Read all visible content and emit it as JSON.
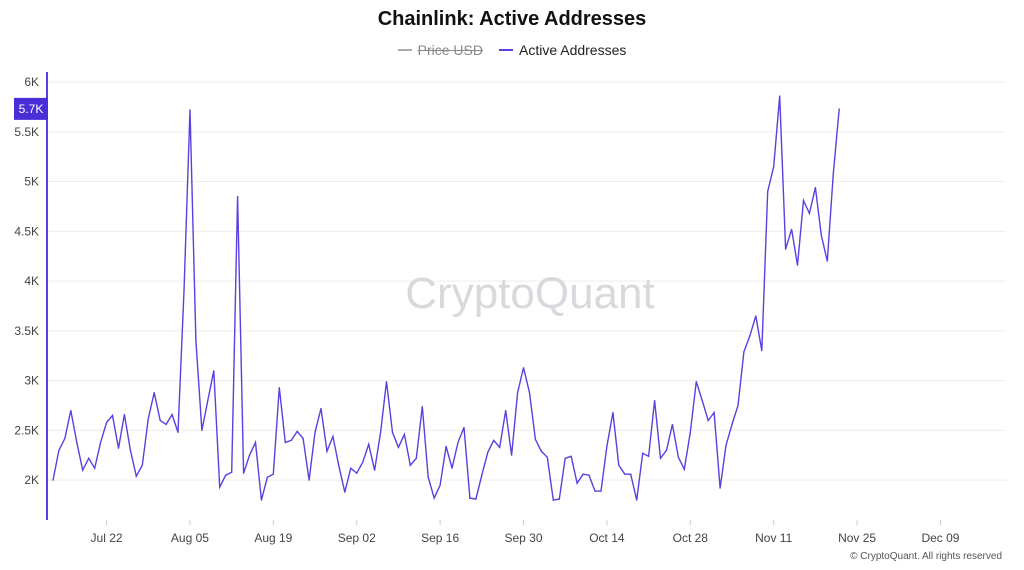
{
  "title": "Chainlink: Active Addresses",
  "legend": [
    {
      "label": "Price USD",
      "color": "#999999",
      "hidden": true
    },
    {
      "label": "Active Addresses",
      "color": "#5b3fe0",
      "hidden": false
    }
  ],
  "watermark": "CryptoQuant",
  "copyright": "© CryptoQuant. All rights reserved",
  "current_value_label": "5.7K",
  "colors": {
    "line": "#5b3fe0",
    "axis": "#5b3fe0",
    "grid": "#eeeeee",
    "badge": "#4a2fd8"
  },
  "chart_data": {
    "type": "line",
    "title": "Chainlink: Active Addresses",
    "xlabel": "",
    "ylabel": "",
    "x_range": [
      "2024-07-12",
      "2024-12-20"
    ],
    "ylim": [
      1600,
      6000
    ],
    "y_ticks": [
      2000,
      2500,
      3000,
      3500,
      4000,
      4500,
      5000,
      5500,
      6000
    ],
    "y_tick_labels": [
      "2K",
      "2.5K",
      "3K",
      "3.5K",
      "4K",
      "4.5K",
      "5K",
      "5.5K",
      "6K"
    ],
    "x_ticks": [
      "2024-07-22",
      "2024-08-05",
      "2024-08-19",
      "2024-09-02",
      "2024-09-16",
      "2024-09-30",
      "2024-10-14",
      "2024-10-28",
      "2024-11-11",
      "2024-11-25",
      "2024-12-09"
    ],
    "x_tick_labels": [
      "Jul 22",
      "Aug 05",
      "Aug 19",
      "Sep 02",
      "Sep 16",
      "Sep 30",
      "Oct 14",
      "Oct 28",
      "Nov 11",
      "Nov 25",
      "Dec 09"
    ],
    "grid": true,
    "legend_position": "top-center",
    "series": [
      {
        "name": "Active Addresses",
        "start_date": "2024-07-13",
        "values": [
          2000,
          2300,
          2420,
          2700,
          2380,
          2100,
          2220,
          2120,
          2380,
          2580,
          2650,
          2320,
          2660,
          2300,
          2040,
          2150,
          2620,
          2880,
          2600,
          2560,
          2660,
          2480,
          3900,
          5720,
          3400,
          2500,
          2800,
          3100,
          1930,
          2050,
          2080,
          4850,
          2070,
          2250,
          2380,
          1800,
          2030,
          2060,
          2930,
          2380,
          2400,
          2490,
          2420,
          2000,
          2480,
          2720,
          2290,
          2440,
          2140,
          1880,
          2120,
          2070,
          2180,
          2360,
          2100,
          2480,
          2990,
          2480,
          2330,
          2460,
          2150,
          2220,
          2740,
          2030,
          1820,
          1950,
          2340,
          2120,
          2380,
          2530,
          1820,
          1810,
          2050,
          2280,
          2400,
          2330,
          2700,
          2250,
          2880,
          3130,
          2880,
          2410,
          2290,
          2230,
          1800,
          1810,
          2220,
          2240,
          1970,
          2060,
          2050,
          1890,
          1890,
          2340,
          2680,
          2150,
          2060,
          2060,
          1800,
          2270,
          2240,
          2800,
          2220,
          2300,
          2560,
          2230,
          2110,
          2480,
          2990,
          2800,
          2600,
          2680,
          1920,
          2350,
          2560,
          2750,
          3290,
          3450,
          3650,
          3300,
          4900,
          5150,
          5860,
          4320,
          4520,
          4160,
          4810,
          4680,
          4940,
          4460,
          4200,
          5080,
          5730
        ]
      }
    ]
  }
}
